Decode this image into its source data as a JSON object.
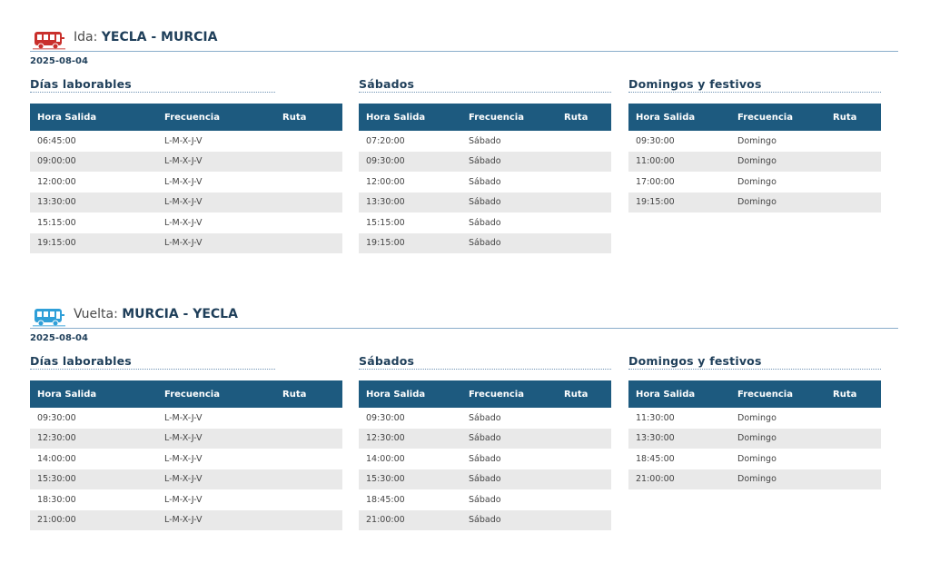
{
  "routes": [
    {
      "prefix": "Ida:",
      "name": "YECLA - MURCIA",
      "icon": "bus-icon",
      "icon_color": "#c9302c",
      "date": "2025-08-04",
      "sections": [
        {
          "title": "Días laborables",
          "headers": [
            "Hora Salida",
            "Frecuencia",
            "Ruta"
          ],
          "rows": [
            [
              "06:45:00",
              "L-M-X-J-V",
              ""
            ],
            [
              "09:00:00",
              "L-M-X-J-V",
              ""
            ],
            [
              "12:00:00",
              "L-M-X-J-V",
              ""
            ],
            [
              "13:30:00",
              "L-M-X-J-V",
              ""
            ],
            [
              "15:15:00",
              "L-M-X-J-V",
              ""
            ],
            [
              "19:15:00",
              "L-M-X-J-V",
              ""
            ]
          ]
        },
        {
          "title": "Sábados",
          "headers": [
            "Hora Salida",
            "Frecuencia",
            "Ruta"
          ],
          "rows": [
            [
              "07:20:00",
              "Sábado",
              ""
            ],
            [
              "09:30:00",
              "Sábado",
              ""
            ],
            [
              "12:00:00",
              "Sábado",
              ""
            ],
            [
              "13:30:00",
              "Sábado",
              ""
            ],
            [
              "15:15:00",
              "Sábado",
              ""
            ],
            [
              "19:15:00",
              "Sábado",
              ""
            ]
          ]
        },
        {
          "title": "Domingos y festivos",
          "headers": [
            "Hora Salida",
            "Frecuencia",
            "Ruta"
          ],
          "rows": [
            [
              "09:30:00",
              "Domingo",
              ""
            ],
            [
              "11:00:00",
              "Domingo",
              ""
            ],
            [
              "17:00:00",
              "Domingo",
              ""
            ],
            [
              "19:15:00",
              "Domingo",
              ""
            ]
          ]
        }
      ]
    },
    {
      "prefix": "Vuelta:",
      "name": "MURCIA - YECLA",
      "icon": "bus-icon",
      "icon_color": "#2f9fd8",
      "date": "2025-08-04",
      "sections": [
        {
          "title": "Días laborables",
          "headers": [
            "Hora Salida",
            "Frecuencia",
            "Ruta"
          ],
          "rows": [
            [
              "09:30:00",
              "L-M-X-J-V",
              ""
            ],
            [
              "12:30:00",
              "L-M-X-J-V",
              ""
            ],
            [
              "14:00:00",
              "L-M-X-J-V",
              ""
            ],
            [
              "15:30:00",
              "L-M-X-J-V",
              ""
            ],
            [
              "18:30:00",
              "L-M-X-J-V",
              ""
            ],
            [
              "21:00:00",
              "L-M-X-J-V",
              ""
            ]
          ]
        },
        {
          "title": "Sábados",
          "headers": [
            "Hora Salida",
            "Frecuencia",
            "Ruta"
          ],
          "rows": [
            [
              "09:30:00",
              "Sábado",
              ""
            ],
            [
              "12:30:00",
              "Sábado",
              ""
            ],
            [
              "14:00:00",
              "Sábado",
              ""
            ],
            [
              "15:30:00",
              "Sábado",
              ""
            ],
            [
              "18:45:00",
              "Sábado",
              ""
            ],
            [
              "21:00:00",
              "Sábado",
              ""
            ]
          ]
        },
        {
          "title": "Domingos y festivos",
          "headers": [
            "Hora Salida",
            "Frecuencia",
            "Ruta"
          ],
          "rows": [
            [
              "11:30:00",
              "Domingo",
              ""
            ],
            [
              "13:30:00",
              "Domingo",
              ""
            ],
            [
              "18:45:00",
              "Domingo",
              ""
            ],
            [
              "21:00:00",
              "Domingo",
              ""
            ]
          ]
        }
      ]
    }
  ]
}
